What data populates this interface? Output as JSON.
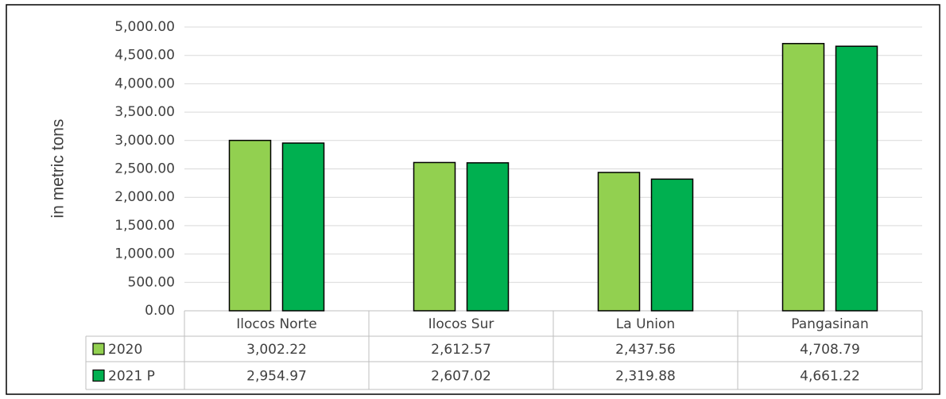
{
  "chart_data": {
    "type": "bar",
    "y_label": "in metric tons",
    "categories": [
      "Ilocos Norte",
      "Ilocos Sur",
      "La Union",
      "Pangasinan"
    ],
    "series": [
      {
        "name": "2020",
        "color": "#92d050",
        "values": [
          3002.22,
          2612.57,
          2437.56,
          4708.79
        ],
        "value_labels": [
          "3,002.22",
          "2,612.57",
          "2,437.56",
          "4,708.79"
        ]
      },
      {
        "name": "2021 P",
        "color": "#00b050",
        "values": [
          2954.97,
          2607.02,
          2319.88,
          4661.22
        ],
        "value_labels": [
          "2,954.97",
          "2,607.02",
          "2,319.88",
          "4,661.22"
        ]
      }
    ],
    "ylim": [
      0,
      5000
    ],
    "yticks": [
      {
        "value": 0,
        "label": "0.00"
      },
      {
        "value": 500,
        "label": "500.00"
      },
      {
        "value": 1000,
        "label": "1,000.00"
      },
      {
        "value": 1500,
        "label": "1,500.00"
      },
      {
        "value": 2000,
        "label": "2,000.00"
      },
      {
        "value": 2500,
        "label": "2,500.00"
      },
      {
        "value": 3000,
        "label": "3,000.00"
      },
      {
        "value": 3500,
        "label": "3,500.00"
      },
      {
        "value": 4000,
        "label": "4,000.00"
      },
      {
        "value": 4500,
        "label": "4,500.00"
      },
      {
        "value": 5000,
        "label": "5,000.00"
      }
    ],
    "grid": true
  }
}
